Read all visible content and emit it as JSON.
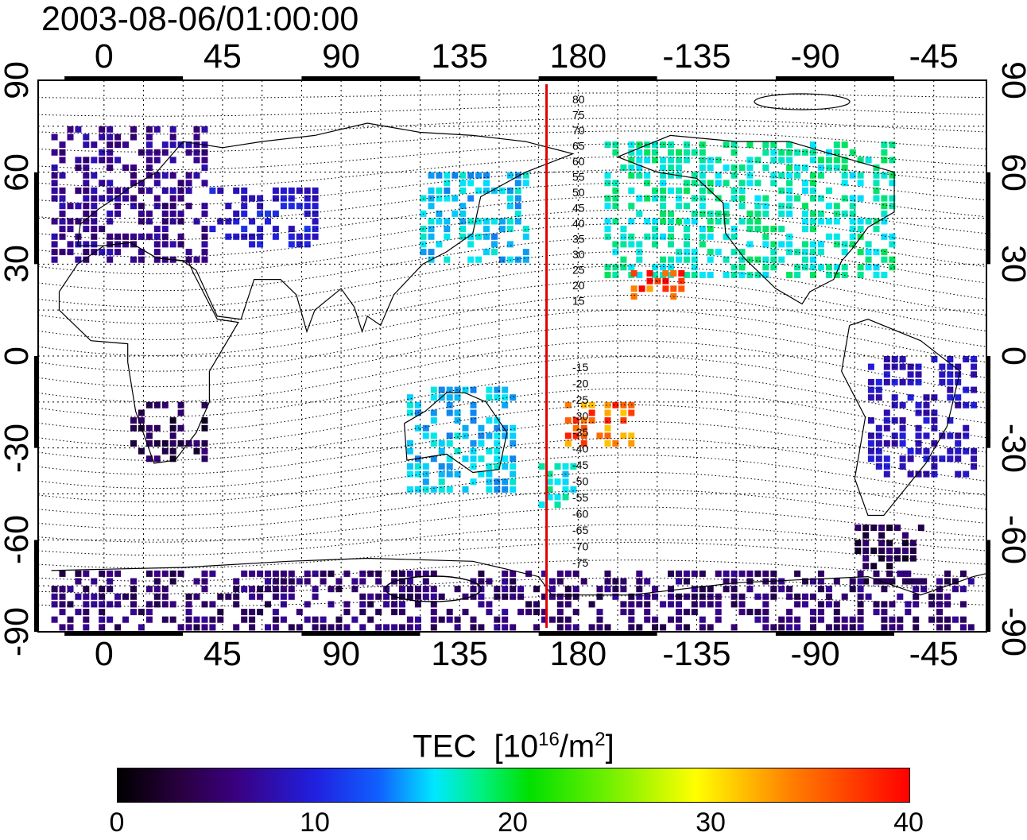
{
  "title": "2003-08-06/01:00:00",
  "map": {
    "lon_ticks": [
      "0",
      "45",
      "90",
      "135",
      "180",
      "-135",
      "-90",
      "-45"
    ],
    "lat_ticks": [
      "90",
      "60",
      "30",
      "0",
      "-30",
      "-60",
      "-90"
    ],
    "contour_labels_north": [
      "80",
      "75",
      "70",
      "65",
      "60",
      "55",
      "50",
      "45",
      "40",
      "35",
      "30",
      "25",
      "20",
      "15"
    ],
    "contour_labels_south": [
      "-15",
      "-20",
      "-25",
      "-30",
      "-35",
      "-40",
      "-45",
      "-50",
      "-55",
      "-60",
      "-65",
      "-70",
      "-75"
    ],
    "meridian_line_lon": 168,
    "meridian_line_color": "#e00000"
  },
  "colorbar": {
    "label": "TEC",
    "unit_base": "[10",
    "unit_exp": "16",
    "unit_mid": "/m",
    "unit_exp2": "2",
    "unit_end": "]",
    "min": 0,
    "max": 40,
    "ticks": [
      "0",
      "10",
      "20",
      "30",
      "40"
    ],
    "colors": [
      "#000000",
      "#3a0080",
      "#2020e0",
      "#00e8ff",
      "#00e000",
      "#ffff00",
      "#ff0000"
    ]
  },
  "chart_data": {
    "type": "heatmap",
    "title": "2003-08-06/01:00:00",
    "xlabel": "",
    "ylabel": "",
    "x_ticks": [
      "0",
      "45",
      "90",
      "135",
      "180",
      "-135",
      "-90",
      "-45"
    ],
    "y_ticks": [
      "90",
      "60",
      "30",
      "0",
      "-30",
      "-60",
      "-90"
    ],
    "xlim": [
      -25,
      335
    ],
    "ylim": [
      -90,
      90
    ],
    "grid": true,
    "colorscale_range": [
      0,
      40
    ],
    "regions": [
      {
        "lon": [
          -20,
          40
        ],
        "lat": [
          30,
          75
        ],
        "value": 8
      },
      {
        "lon": [
          40,
          80
        ],
        "lat": [
          35,
          55
        ],
        "value": 12
      },
      {
        "lon": [
          120,
          160
        ],
        "lat": [
          30,
          60
        ],
        "value": 19
      },
      {
        "lon": [
          190,
          300
        ],
        "lat": [
          25,
          70
        ],
        "value": 22
      },
      {
        "lon": [
          200,
          220
        ],
        "lat": [
          18,
          28
        ],
        "value": 38
      },
      {
        "lon": [
          175,
          200
        ],
        "lat": [
          -30,
          -15
        ],
        "value": 37
      },
      {
        "lon": [
          165,
          180
        ],
        "lat": [
          -50,
          -35
        ],
        "value": 21
      },
      {
        "lon": [
          115,
          155
        ],
        "lat": [
          -45,
          -10
        ],
        "value": 19
      },
      {
        "lon": [
          10,
          40
        ],
        "lat": [
          -35,
          -15
        ],
        "value": 4
      },
      {
        "lon": [
          290,
          330
        ],
        "lat": [
          -40,
          0
        ],
        "value": 11
      },
      {
        "lon": [
          285,
          310
        ],
        "lat": [
          -75,
          -55
        ],
        "value": 4
      },
      {
        "lon": [
          -20,
          330
        ],
        "lat": [
          -90,
          -70
        ],
        "value": 6
      }
    ]
  }
}
